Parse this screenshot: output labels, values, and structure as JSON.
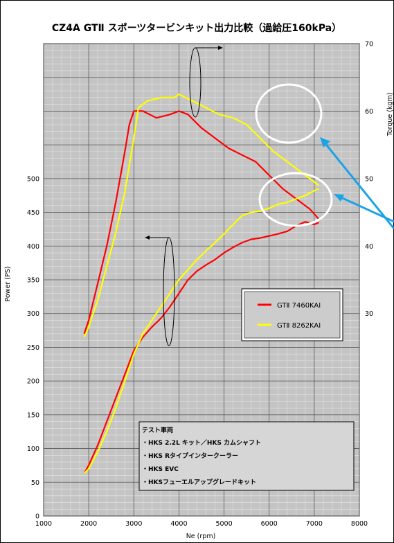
{
  "chart_data": {
    "type": "line",
    "title": "CZ4A GTⅡ スポーツタービンキット出力比較（過給圧160kPa）",
    "xlabel": "Ne (rpm)",
    "ylabel_left": "Power (PS)",
    "ylabel_right": "Torque (kgm)",
    "xlim": [
      1000,
      8000
    ],
    "ylim_left": [
      0,
      700
    ],
    "ylim_right": [
      0,
      70
    ],
    "x_ticks": [
      "1000",
      "2000",
      "3000",
      "4000",
      "5000",
      "6000",
      "7000",
      "8000"
    ],
    "y_ticks_left": [
      "0",
      "50",
      "100",
      "150",
      "200",
      "250",
      "300",
      "350",
      "400",
      "450",
      "500"
    ],
    "y_ticks_right": [
      "30",
      "40",
      "50",
      "60",
      "70"
    ],
    "grid": true,
    "legend_position": "right-middle",
    "legend": [
      "GTⅡ 7460KAI",
      "GTⅡ 8262KAI"
    ],
    "series": [
      {
        "name": "GTⅡ 7460KAI",
        "color": "#ff0000",
        "axis": "right",
        "kind": "torque",
        "x": [
          1900,
          2000,
          2200,
          2400,
          2600,
          2800,
          2900,
          3000,
          3200,
          3500,
          3800,
          4000,
          4200,
          4500,
          4800,
          5100,
          5400,
          5700,
          6000,
          6300,
          6600,
          6900,
          7100
        ],
        "y": [
          27.0,
          29.0,
          34.5,
          40.0,
          46.5,
          54.0,
          58.0,
          60.0,
          60.0,
          59.0,
          59.5,
          60.0,
          59.5,
          57.5,
          56.0,
          54.5,
          53.5,
          52.5,
          50.5,
          48.5,
          47.0,
          45.5,
          44.0
        ]
      },
      {
        "name": "GTⅡ 8262KAI",
        "color": "#ffff00",
        "axis": "right",
        "kind": "torque",
        "x": [
          1900,
          2000,
          2200,
          2400,
          2600,
          2800,
          3000,
          3100,
          3300,
          3600,
          3900,
          4000,
          4300,
          4600,
          4900,
          5200,
          5500,
          5800,
          6100,
          6400,
          6700,
          7000,
          7100
        ],
        "y": [
          26.5,
          28.0,
          32.0,
          37.0,
          42.0,
          48.0,
          56.0,
          60.5,
          61.5,
          62.0,
          62.0,
          62.5,
          61.5,
          60.5,
          59.5,
          59.0,
          58.0,
          56.0,
          54.0,
          52.5,
          51.0,
          49.5,
          49.0
        ]
      },
      {
        "name": "GTⅡ 7460KAI",
        "color": "#ff0000",
        "axis": "left",
        "kind": "power",
        "x": [
          1900,
          2000,
          2200,
          2400,
          2600,
          2800,
          3000,
          3200,
          3400,
          3600,
          3800,
          4000,
          4200,
          4400,
          4600,
          4800,
          5000,
          5200,
          5400,
          5600,
          5800,
          6000,
          6200,
          6400,
          6600,
          6800,
          7000,
          7100
        ],
        "y": [
          63,
          75,
          105,
          140,
          175,
          210,
          245,
          265,
          280,
          293,
          310,
          330,
          350,
          363,
          372,
          380,
          390,
          398,
          405,
          410,
          412,
          415,
          418,
          422,
          430,
          436,
          432,
          435
        ]
      },
      {
        "name": "GTⅡ 8262KAI",
        "color": "#ffff00",
        "axis": "left",
        "kind": "power",
        "x": [
          1900,
          2000,
          2200,
          2400,
          2600,
          2800,
          3000,
          3200,
          3400,
          3600,
          3800,
          4000,
          4200,
          4400,
          4600,
          4800,
          5000,
          5200,
          5400,
          5600,
          5800,
          6000,
          6200,
          6400,
          6600,
          6800,
          7000,
          7100
        ],
        "y": [
          63,
          70,
          95,
          125,
          160,
          200,
          240,
          270,
          290,
          310,
          330,
          350,
          365,
          380,
          393,
          405,
          418,
          432,
          445,
          450,
          452,
          456,
          462,
          465,
          470,
          475,
          482,
          485
        ]
      }
    ],
    "annotation_box": [
      "テスト車両",
      "・HKS 2.2L キット／HKS カムシャフト",
      "・HKS Rタイプインタークーラー",
      "・HKS EVC",
      "・HKSフューエルアップグレードキット"
    ]
  }
}
